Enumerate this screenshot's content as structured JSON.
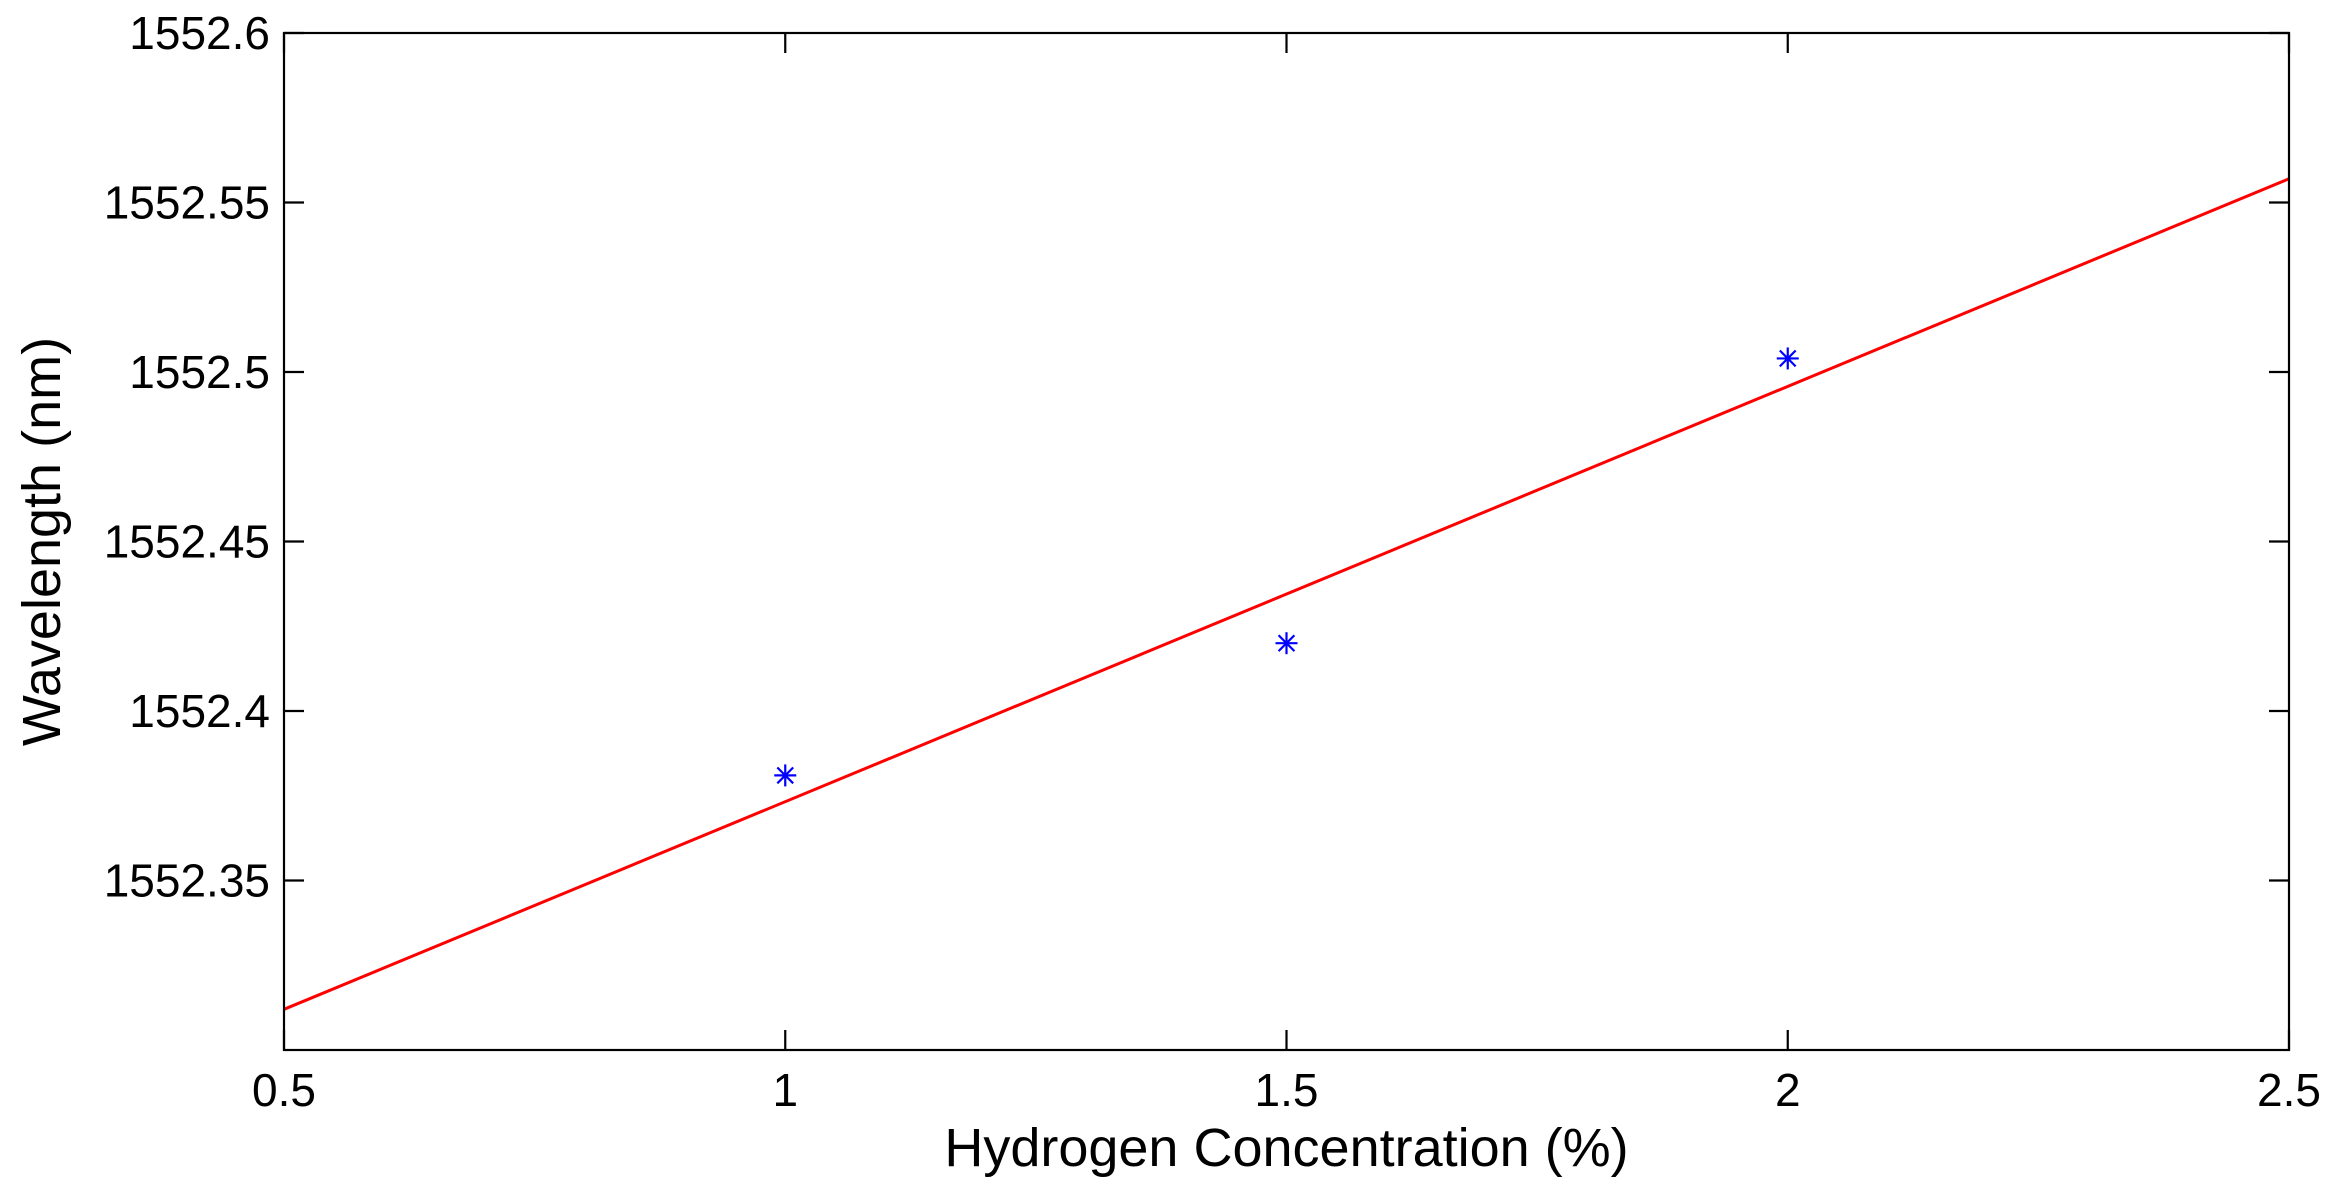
{
  "chart_data": {
    "type": "scatter",
    "title": "",
    "xlabel": "Hydrogen Concentration (%)",
    "ylabel": "Wavelength (nm)",
    "xlim": [
      0.5,
      2.5
    ],
    "ylim": [
      1552.3,
      1552.6
    ],
    "xticks": [
      0.5,
      1,
      1.5,
      2,
      2.5
    ],
    "xtick_labels": [
      "0.5",
      "1",
      "1.5",
      "2",
      "2.5"
    ],
    "yticks": [
      1552.35,
      1552.4,
      1552.45,
      1552.5,
      1552.55,
      1552.6
    ],
    "ytick_labels": [
      "1552.35",
      "1552.4",
      "1552.45",
      "1552.5",
      "1552.55",
      "1552.6"
    ],
    "grid": false,
    "legend": "none",
    "series": [
      {
        "type": "scatter",
        "marker": "asterisk",
        "color": "#0000ff",
        "x": [
          1,
          1.5,
          2
        ],
        "y": [
          1552.381,
          1552.42,
          1552.504
        ]
      },
      {
        "type": "line",
        "color": "#ff0000",
        "x": [
          0.5,
          2.5
        ],
        "y": [
          1552.312,
          1552.557
        ]
      }
    ]
  }
}
